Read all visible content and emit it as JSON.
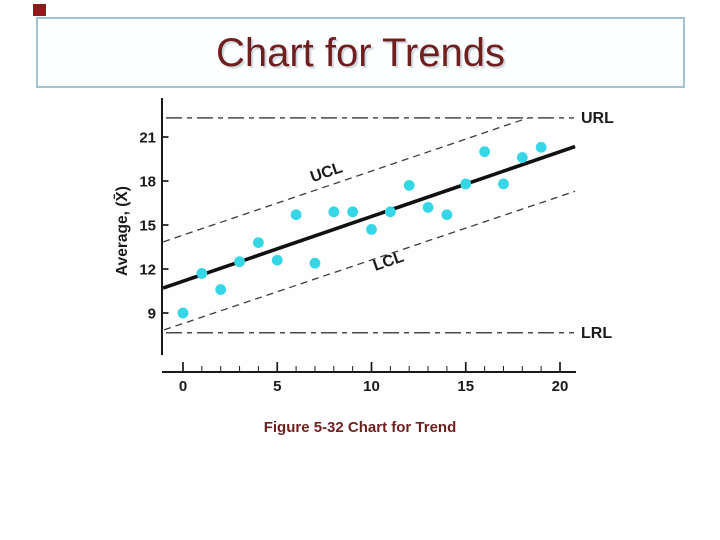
{
  "slide": {
    "title": "Chart for Trends",
    "caption": "Figure 5-32 Chart for Trend",
    "accent_text_color": "#6e1f1e",
    "title_box_border_color": "#a3c3d2",
    "corner_marker_color": "#8e1b1b"
  },
  "chart_data": {
    "type": "scatter",
    "title": "",
    "xlabel": "",
    "ylabel": "Average, (X̄)",
    "x": [
      0,
      1,
      2,
      3,
      4,
      5,
      6,
      7,
      8,
      9,
      10,
      11,
      12,
      13,
      14,
      15,
      16,
      17,
      18,
      19
    ],
    "values": [
      9.0,
      11.7,
      10.6,
      12.5,
      13.8,
      12.6,
      15.7,
      12.4,
      15.9,
      15.9,
      14.7,
      15.9,
      17.7,
      16.2,
      15.7,
      17.8,
      20.0,
      17.8,
      19.6,
      20.3
    ],
    "point_color": "#35d7e6",
    "x_ticks": [
      0,
      5,
      10,
      15,
      20
    ],
    "y_ticks": [
      9,
      12,
      15,
      18,
      21
    ],
    "xlim": [
      -1.1,
      20.8
    ],
    "ylim": [
      6.1,
      23.7
    ],
    "grid": false,
    "legend_position": "none",
    "trend_line": {
      "from": [
        -1.06,
        10.7
      ],
      "to": [
        20.8,
        20.35
      ]
    },
    "lines": {
      "URL": {
        "label": "URL",
        "style": "dash-dot",
        "orientation": "horizontal",
        "y": 22.3
      },
      "LRL": {
        "label": "LRL",
        "style": "dash-dot",
        "orientation": "horizontal",
        "y": 7.65
      },
      "UCL": {
        "label": "UCL",
        "style": "dashed",
        "orientation": "diagonal",
        "from": [
          -1.05,
          13.85
        ],
        "to": [
          18.3,
          22.3
        ]
      },
      "LCL": {
        "label": "LCL",
        "style": "dashed",
        "orientation": "diagonal",
        "from": [
          -1.0,
          7.85
        ],
        "to": [
          20.8,
          17.3
        ]
      }
    }
  }
}
